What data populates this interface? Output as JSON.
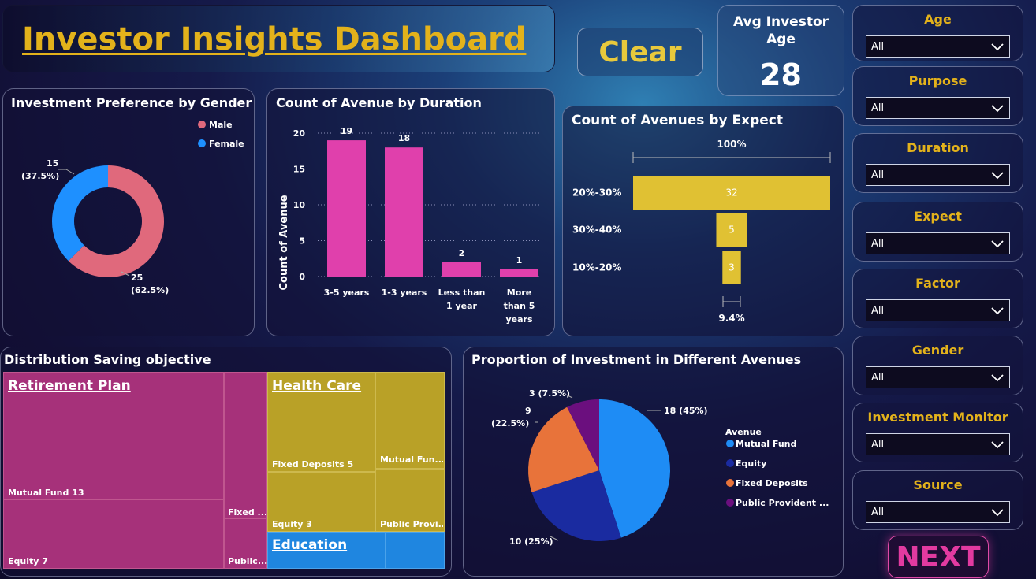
{
  "header": {
    "title": "Investor Insights Dashboard",
    "clear_label": "Clear"
  },
  "kpi": {
    "label": "Avg Investor Age",
    "value": "28"
  },
  "slicers": [
    {
      "label": "Age",
      "value": "All"
    },
    {
      "label": "Purpose",
      "value": "All"
    },
    {
      "label": "Duration",
      "value": "All"
    },
    {
      "label": "Expect",
      "value": "All"
    },
    {
      "label": "Factor",
      "value": "All"
    },
    {
      "label": "Gender",
      "value": "All"
    },
    {
      "label": "Investment Monitor",
      "value": "All"
    },
    {
      "label": "Source",
      "value": "All"
    }
  ],
  "next_label": "NEXT",
  "colors": {
    "gold": "#e3b21b",
    "pink": "#e040ac",
    "male": "#e0697c",
    "female": "#1e90ff"
  },
  "chart_data": [
    {
      "type": "pie",
      "title": "Investment Preference by Gender",
      "categories": [
        "Male",
        "Female"
      ],
      "values": [
        25,
        15
      ],
      "data_labels": [
        "25\n(62.5%)",
        "15\n(37.5%)"
      ],
      "legend": "top-right"
    },
    {
      "type": "bar",
      "title": "Count of Avenue by Duration",
      "ylabel": "Count of Avenue",
      "categories": [
        "3-5 years",
        "1-3 years",
        "Less than 1 year",
        "More than 5 years"
      ],
      "values": [
        19,
        18,
        2,
        1
      ],
      "ylim": [
        0,
        20
      ],
      "yticks": [
        0,
        5,
        10,
        15,
        20
      ],
      "grid": true
    },
    {
      "type": "bar",
      "title": "Count of Avenues by Expect",
      "categories": [
        "20%-30%",
        "30%-40%",
        "10%-20%"
      ],
      "values": [
        32,
        5,
        3
      ],
      "top_label": "100%",
      "bottom_label": "9.4%"
    },
    {
      "type": "heatmap",
      "title": "Distribution Saving objective",
      "groups": [
        {
          "name": "Retirement Plan",
          "items": [
            {
              "label": "Mutual Fund 13",
              "value": 13
            },
            {
              "label": "Equity 7",
              "value": 7
            },
            {
              "label": "Fixed ...",
              "value": null
            },
            {
              "label": "Public...",
              "value": null
            }
          ]
        },
        {
          "name": "Health Care",
          "items": [
            {
              "label": "Fixed Deposits 5",
              "value": 5
            },
            {
              "label": "Mutual Fun...",
              "value": null
            },
            {
              "label": "Equity 3",
              "value": 3
            },
            {
              "label": "Public Provi...",
              "value": null
            }
          ]
        },
        {
          "name": "Education",
          "items": []
        }
      ]
    },
    {
      "type": "pie",
      "title": "Proportion of Investment in Different Avenues",
      "legend_title": "Avenue",
      "categories": [
        "Mutual Fund",
        "Equity",
        "Fixed Deposits",
        "Public Provident ..."
      ],
      "values": [
        18,
        10,
        9,
        3
      ],
      "data_labels": [
        "18 (45%)",
        "10 (25%)",
        "9\n(22.5%)",
        "3 (7.5%)"
      ],
      "legend": "right"
    }
  ]
}
